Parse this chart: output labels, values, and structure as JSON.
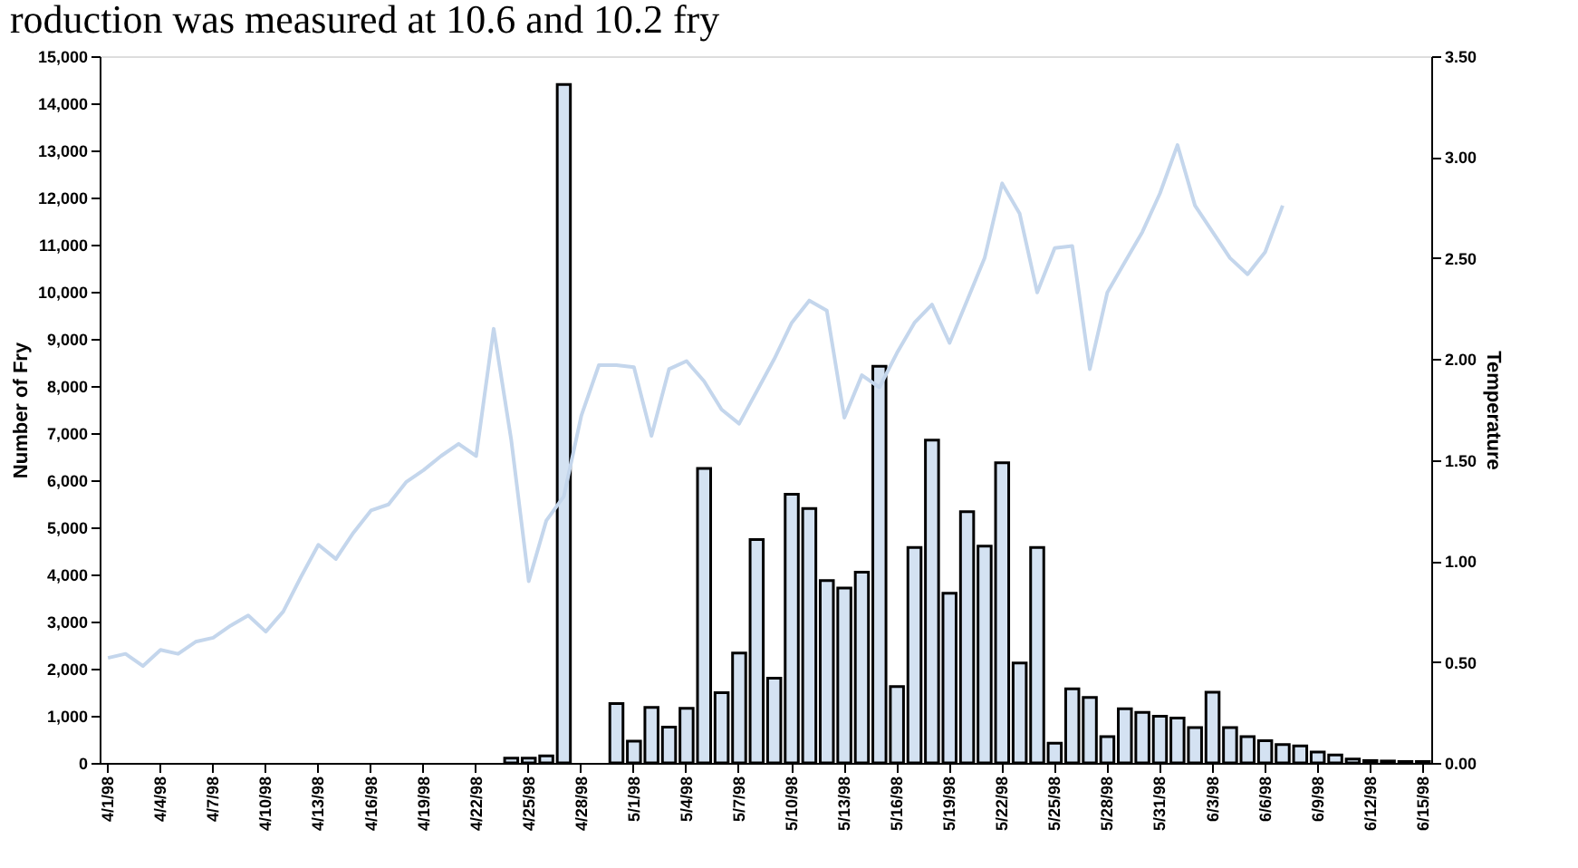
{
  "chart_data": {
    "type": "bar",
    "annotations": [
      "roduction was measured at 10.6 and 10.2 fry"
    ],
    "ylabel": "Number of Fry",
    "y2label": "Temperature",
    "categories": [
      "4/1/98",
      null,
      null,
      "4/4/98",
      null,
      null,
      "4/7/98",
      null,
      null,
      "4/10/98",
      null,
      null,
      "4/13/98",
      null,
      null,
      "4/16/98",
      null,
      null,
      "4/19/98",
      null,
      null,
      "4/22/98",
      null,
      null,
      "4/25/98",
      null,
      null,
      "4/28/98",
      null,
      null,
      "5/1/98",
      null,
      null,
      "5/4/98",
      null,
      null,
      "5/7/98",
      null,
      null,
      "5/10/98",
      null,
      null,
      "5/13/98",
      null,
      null,
      "5/16/98",
      null,
      null,
      "5/19/98",
      null,
      null,
      "5/22/98",
      null,
      null,
      "5/25/98",
      null,
      null,
      "5/28/98",
      null,
      null,
      "5/31/98",
      null,
      null,
      "6/3/98",
      null,
      null,
      "6/6/98",
      null,
      null,
      "6/9/98",
      null,
      null,
      "6/12/98",
      null,
      null,
      "6/15/98"
    ],
    "series": [
      {
        "color": "#d4e2f2",
        "values": [
          null,
          null,
          null,
          null,
          null,
          null,
          null,
          null,
          null,
          null,
          null,
          null,
          null,
          null,
          null,
          null,
          null,
          null,
          null,
          null,
          null,
          null,
          null,
          100,
          100,
          150,
          14400,
          null,
          null,
          1260,
          460,
          1180,
          760,
          1160,
          6250,
          1490,
          2330,
          4740,
          1800,
          5700,
          5400,
          3870,
          3710,
          4050,
          8420,
          1620,
          4570,
          6850,
          3600,
          5330,
          4600,
          6370,
          2120,
          4570,
          420,
          1570,
          1390,
          560,
          1150,
          1070,
          990,
          950,
          750,
          1500,
          750,
          560,
          470,
          390,
          360,
          230,
          170,
          80,
          50,
          40,
          30,
          30
        ]
      },
      {
        "type": "line",
        "axis": "y2",
        "color": "#c4d6ec",
        "values": [
          0.52,
          0.54,
          0.48,
          0.56,
          0.54,
          0.6,
          0.62,
          0.68,
          0.73,
          0.65,
          0.75,
          0.92,
          1.08,
          1.01,
          1.14,
          1.25,
          1.28,
          1.39,
          1.45,
          1.52,
          1.58,
          1.52,
          2.15,
          1.6,
          0.9,
          1.2,
          1.32,
          1.72,
          1.97,
          1.97,
          1.96,
          1.62,
          1.95,
          1.99,
          1.89,
          1.75,
          1.68,
          1.84,
          2.0,
          2.18,
          2.29,
          2.24,
          1.71,
          1.92,
          1.86,
          2.03,
          2.18,
          2.27,
          2.08,
          2.29,
          2.5,
          2.87,
          2.72,
          2.33,
          2.55,
          2.56,
          1.95,
          2.33,
          2.48,
          2.63,
          2.82,
          3.06,
          2.76,
          2.63,
          2.5,
          2.42,
          2.53,
          2.76,
          null,
          null,
          null,
          null,
          null,
          null,
          null,
          null
        ]
      }
    ],
    "ylim": [
      0,
      15000
    ],
    "yticks": [
      0,
      {
        "value": 1000,
        "label": "1,000"
      },
      {
        "value": 2000,
        "label": "2,000"
      },
      {
        "value": 3000,
        "label": "3,000"
      },
      {
        "value": 4000,
        "label": "4,000"
      },
      {
        "value": 5000,
        "label": "5,000"
      },
      {
        "value": 6000,
        "label": "6,000"
      },
      {
        "value": 7000,
        "label": "7,000"
      },
      {
        "value": 8000,
        "label": "8,000"
      },
      {
        "value": 9000,
        "label": "9,000"
      },
      {
        "value": 10000,
        "label": "10,000"
      },
      {
        "value": 11000,
        "label": "11,000"
      },
      {
        "value": 12000,
        "label": "12,000"
      },
      {
        "value": 13000,
        "label": "13,000"
      },
      {
        "value": 14000,
        "label": "14,000"
      },
      {
        "value": 15000,
        "label": "15,000"
      }
    ],
    "y2lim": [
      0,
      3.5
    ],
    "y2ticks": [
      {
        "value": 0,
        "label": "0.00"
      },
      {
        "value": 0.5,
        "label": "0.50"
      },
      {
        "value": 1,
        "label": "1.00"
      },
      {
        "value": 1.5,
        "label": "1.50"
      },
      {
        "value": 2,
        "label": "2.00"
      },
      {
        "value": 2.5,
        "label": "2.50"
      },
      {
        "value": 3,
        "label": "3.00"
      },
      {
        "value": 3.5,
        "label": "3.50"
      }
    ],
    "grid": false
  }
}
